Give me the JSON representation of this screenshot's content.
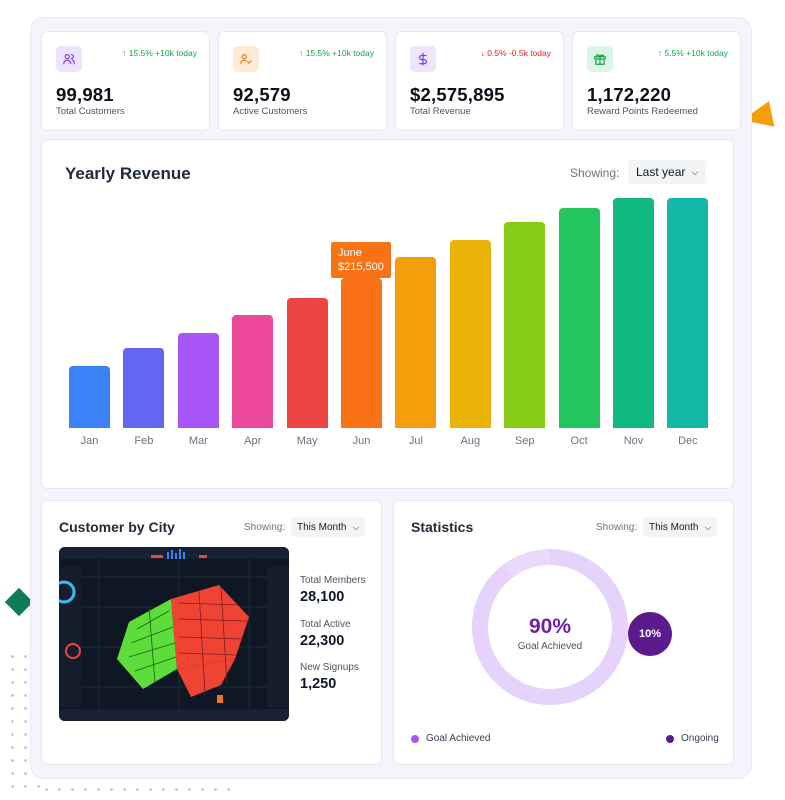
{
  "kpis": [
    {
      "value": "99,981",
      "label": "Total Customers",
      "delta": "↑ 15.5% +10k today",
      "trend": "up",
      "icon": "users-icon",
      "tint": "#ede4fb",
      "iconColor": "#7c3aed"
    },
    {
      "value": "92,579",
      "label": "Active Customers",
      "delta": "↑ 15.5% +10k today",
      "trend": "up",
      "icon": "user-check-icon",
      "tint": "#fdebd8",
      "iconColor": "#ea7b1c"
    },
    {
      "value": "$2,575,895",
      "label": "Total Revenue",
      "delta": "↓ 0.5% -0.5k today",
      "trend": "down",
      "icon": "dollar-icon",
      "tint": "#efe5fb",
      "iconColor": "#7c3aed"
    },
    {
      "value": "1,172,220",
      "label": "Reward Points Redeemed",
      "delta": "↑ 5.5% +10k today",
      "trend": "up",
      "icon": "gift-icon",
      "tint": "#dcf5e6",
      "iconColor": "#16a34a"
    }
  ],
  "revenue": {
    "title": "Yearly Revenue",
    "showing_label": "Showing:",
    "range": "Last year",
    "tooltip_month": "June",
    "tooltip_value": "$215,500"
  },
  "chart_data": {
    "type": "bar",
    "title": "Yearly Revenue",
    "categories": [
      "Jan",
      "Feb",
      "Mar",
      "Apr",
      "May",
      "Jun",
      "Jul",
      "Aug",
      "Sep",
      "Oct",
      "Nov",
      "Dec"
    ],
    "values": [
      62,
      80,
      95,
      113,
      130,
      150,
      171,
      188,
      206,
      220,
      230,
      230
    ],
    "colors": [
      "#3b82f6",
      "#6366f1",
      "#a855f7",
      "#ec4899",
      "#ef4444",
      "#f97316",
      "#f59e0b",
      "#eab308",
      "#84cc16",
      "#22c55e",
      "#10b981",
      "#14b8a6"
    ],
    "highlight_index": 5
  },
  "city": {
    "title": "Customer by City",
    "showing_label": "Showing:",
    "range": "This Month",
    "stats": [
      {
        "label": "Total Members",
        "value": "28,100"
      },
      {
        "label": "Total Active",
        "value": "22,300"
      },
      {
        "label": "New Signups",
        "value": "1,250"
      }
    ]
  },
  "statistics": {
    "title": "Statistics",
    "showing_label": "Showing:",
    "range": "This Month",
    "achieved_pct": 90,
    "achieved_value": "90%",
    "achieved_label": "Goal Achieved",
    "ongoing_value": "10%",
    "legend": [
      {
        "label": "Goal Achieved",
        "color": "#a855f7"
      },
      {
        "label": "Ongoing",
        "color": "#5b1b8c"
      }
    ]
  }
}
